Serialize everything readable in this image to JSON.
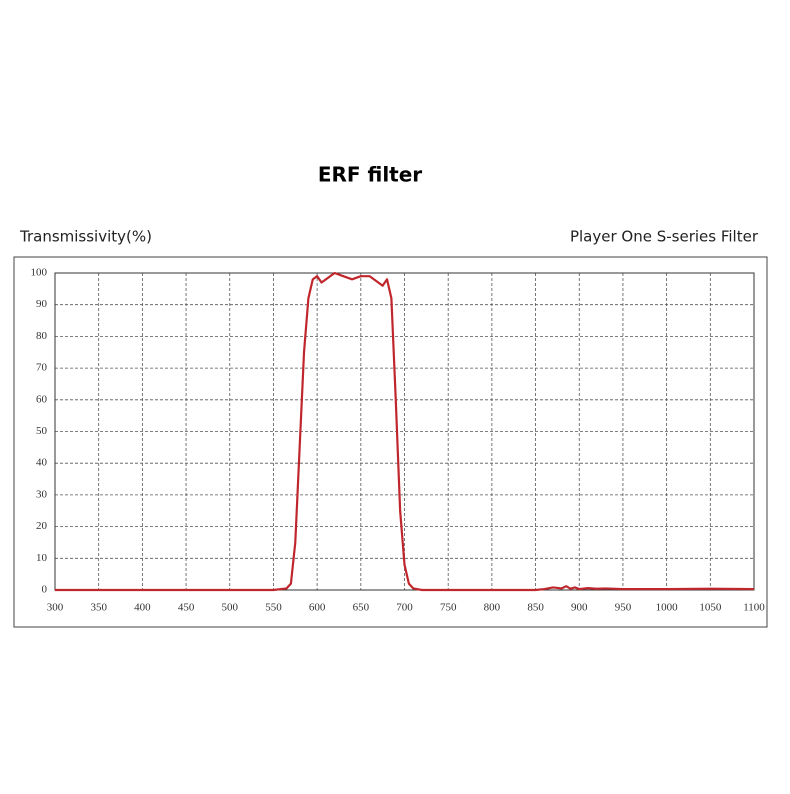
{
  "chart_data": {
    "type": "line",
    "title": "ERF filter",
    "y_label": "Transmissivity(%)",
    "annotation": "Player One S-series Filter",
    "x": [
      300,
      550,
      565,
      570,
      575,
      580,
      585,
      590,
      595,
      600,
      605,
      610,
      620,
      630,
      640,
      650,
      660,
      670,
      675,
      680,
      685,
      690,
      695,
      700,
      705,
      710,
      720,
      850,
      860,
      870,
      880,
      885,
      890,
      895,
      900,
      910,
      920,
      930,
      950,
      1000,
      1050,
      1100
    ],
    "series": [
      {
        "name": "ERF filter",
        "color": "#c0272d",
        "values": [
          0,
          0,
          0.5,
          2,
          15,
          45,
          75,
          92,
          98,
          99,
          97,
          98,
          100,
          99,
          98,
          99,
          99,
          97,
          96,
          98,
          92,
          60,
          25,
          8,
          2,
          0.5,
          0,
          0,
          0.3,
          0.8,
          0.5,
          1.2,
          0.4,
          0.8,
          0.3,
          0.6,
          0.4,
          0.5,
          0.3,
          0.3,
          0.4,
          0.3
        ]
      }
    ],
    "xlim": [
      300,
      1100
    ],
    "ylim": [
      0,
      100
    ],
    "xticks": [
      300,
      350,
      400,
      450,
      500,
      550,
      600,
      650,
      700,
      750,
      800,
      850,
      900,
      950,
      1000,
      1050,
      1100
    ],
    "yticks": [
      0,
      10,
      20,
      30,
      40,
      50,
      60,
      70,
      80,
      90,
      100
    ],
    "grid": true
  }
}
